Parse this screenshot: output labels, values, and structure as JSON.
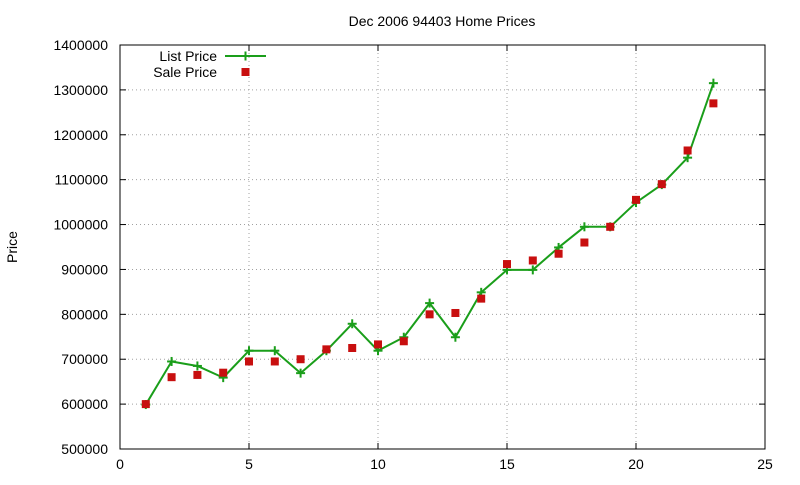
{
  "chart_data": {
    "type": "line",
    "title": "Dec 2006 94403 Home Prices",
    "xlabel": "",
    "ylabel": "Price",
    "xlim": [
      0,
      25
    ],
    "ylim": [
      500000,
      1400000
    ],
    "x_ticks": [
      0,
      5,
      10,
      15,
      20,
      25
    ],
    "y_ticks": [
      500000,
      600000,
      700000,
      800000,
      900000,
      1000000,
      1100000,
      1200000,
      1300000,
      1400000
    ],
    "grid": true,
    "legend_position": "top-left",
    "series": [
      {
        "name": "List Price",
        "style": "line-with-plus-markers",
        "color": "#1a9e1a",
        "x": [
          1,
          2,
          3,
          4,
          5,
          6,
          7,
          8,
          9,
          10,
          11,
          12,
          13,
          14,
          15,
          16,
          17,
          18,
          19,
          20,
          21,
          22,
          23
        ],
        "y": [
          599000,
          695000,
          685000,
          659000,
          719000,
          719000,
          669000,
          719000,
          779000,
          719000,
          749000,
          825000,
          749000,
          849000,
          899000,
          899000,
          949000,
          995000,
          995000,
          1049000,
          1089000,
          1149000,
          1315000
        ]
      },
      {
        "name": "Sale Price",
        "style": "square-markers",
        "color": "#c80f0f",
        "x": [
          1,
          2,
          3,
          4,
          5,
          6,
          7,
          8,
          9,
          10,
          11,
          12,
          13,
          14,
          15,
          16,
          17,
          18,
          19,
          20,
          21,
          22,
          23
        ],
        "y": [
          600000,
          660000,
          665000,
          670000,
          695000,
          695000,
          700000,
          722000,
          725000,
          733000,
          740000,
          800000,
          803000,
          835000,
          912000,
          920000,
          935000,
          960000,
          995000,
          1055000,
          1090000,
          1165000,
          1270000
        ]
      }
    ]
  }
}
